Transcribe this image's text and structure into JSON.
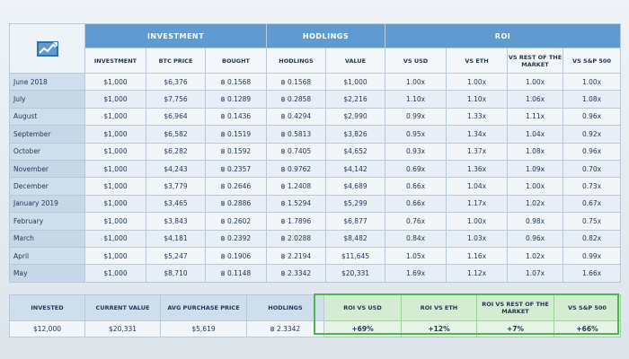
{
  "header": {
    "groups": [
      "INVESTMENT",
      "HODLINGS",
      "ROI"
    ],
    "columns": [
      "INVESTMENT",
      "BTC PRICE",
      "BOUGHT",
      "HODLINGS",
      "VALUE",
      "VS USD",
      "VS ETH",
      "VS REST OF THE MARKET",
      "VS S&P 500"
    ]
  },
  "rows": [
    {
      "month": "June 2018",
      "investment": "$1,000",
      "btc_price": "$6,376",
      "bought": "฿ 0.1568",
      "hodlings": "฿ 0.1568",
      "value": "$1,000",
      "vs_usd": "1.00x",
      "vs_eth": "1.00x",
      "vs_rest": "1.00x",
      "vs_sp": "1.00x"
    },
    {
      "month": "July",
      "investment": "$1,000",
      "btc_price": "$7,756",
      "bought": "฿ 0.1289",
      "hodlings": "฿ 0.2858",
      "value": "$2,216",
      "vs_usd": "1.10x",
      "vs_eth": "1.10x",
      "vs_rest": "1.06x",
      "vs_sp": "1.08x"
    },
    {
      "month": "August",
      "investment": "$1,000",
      "btc_price": "$6,964",
      "bought": "฿ 0.1436",
      "hodlings": "฿ 0.4294",
      "value": "$2,990",
      "vs_usd": "0.99x",
      "vs_eth": "1.33x",
      "vs_rest": "1.11x",
      "vs_sp": "0.96x"
    },
    {
      "month": "September",
      "investment": "$1,000",
      "btc_price": "$6,582",
      "bought": "฿ 0.1519",
      "hodlings": "฿ 0.5813",
      "value": "$3,826",
      "vs_usd": "0.95x",
      "vs_eth": "1.34x",
      "vs_rest": "1.04x",
      "vs_sp": "0.92x"
    },
    {
      "month": "October",
      "investment": "$1,000",
      "btc_price": "$6,282",
      "bought": "฿ 0.1592",
      "hodlings": "฿ 0.7405",
      "value": "$4,652",
      "vs_usd": "0.93x",
      "vs_eth": "1.37x",
      "vs_rest": "1.08x",
      "vs_sp": "0.96x"
    },
    {
      "month": "November",
      "investment": "$1,000",
      "btc_price": "$4,243",
      "bought": "฿ 0.2357",
      "hodlings": "฿ 0.9762",
      "value": "$4,142",
      "vs_usd": "0.69x",
      "vs_eth": "1.36x",
      "vs_rest": "1.09x",
      "vs_sp": "0.70x"
    },
    {
      "month": "December",
      "investment": "$1,000",
      "btc_price": "$3,779",
      "bought": "฿ 0.2646",
      "hodlings": "฿ 1.2408",
      "value": "$4,689",
      "vs_usd": "0.66x",
      "vs_eth": "1.04x",
      "vs_rest": "1.00x",
      "vs_sp": "0.73x"
    },
    {
      "month": "January 2019",
      "investment": "$1,000",
      "btc_price": "$3,465",
      "bought": "฿ 0.2886",
      "hodlings": "฿ 1.5294",
      "value": "$5,299",
      "vs_usd": "0.66x",
      "vs_eth": "1.17x",
      "vs_rest": "1.02x",
      "vs_sp": "0.67x"
    },
    {
      "month": "February",
      "investment": "$1,000",
      "btc_price": "$3,843",
      "bought": "฿ 0.2602",
      "hodlings": "฿ 1.7896",
      "value": "$6,877",
      "vs_usd": "0.76x",
      "vs_eth": "1.00x",
      "vs_rest": "0.98x",
      "vs_sp": "0.75x"
    },
    {
      "month": "March",
      "investment": "$1,000",
      "btc_price": "$4,181",
      "bought": "฿ 0.2392",
      "hodlings": "฿ 2.0288",
      "value": "$8,482",
      "vs_usd": "0.84x",
      "vs_eth": "1.03x",
      "vs_rest": "0.96x",
      "vs_sp": "0.82x"
    },
    {
      "month": "April",
      "investment": "$1,000",
      "btc_price": "$5,247",
      "bought": "฿ 0.1906",
      "hodlings": "฿ 2.2194",
      "value": "$11,645",
      "vs_usd": "1.05x",
      "vs_eth": "1.16x",
      "vs_rest": "1.02x",
      "vs_sp": "0.99x"
    },
    {
      "month": "May",
      "investment": "$1,000",
      "btc_price": "$8,710",
      "bought": "฿ 0.1148",
      "hodlings": "฿ 2.3342",
      "value": "$20,331",
      "vs_usd": "1.69x",
      "vs_eth": "1.12x",
      "vs_rest": "1.07x",
      "vs_sp": "1.66x"
    }
  ],
  "summary": {
    "headers": [
      "INVESTED",
      "CURRENT VALUE",
      "AVG PURCHASE PRICE",
      "HODLINGS",
      "ROI VS USD",
      "ROI VS ETH",
      "ROI VS REST OF THE MARKET",
      "VS S&P 500"
    ],
    "values": [
      "$12,000",
      "$20,331",
      "$5,619",
      "฿ 2.3342",
      "+69%",
      "+12%",
      "+7%",
      "+66%"
    ]
  },
  "colors": {
    "header_blue": "#5f9ad1",
    "roi_green": "#4fb54f"
  },
  "logo_icon": "chart-logo-icon"
}
